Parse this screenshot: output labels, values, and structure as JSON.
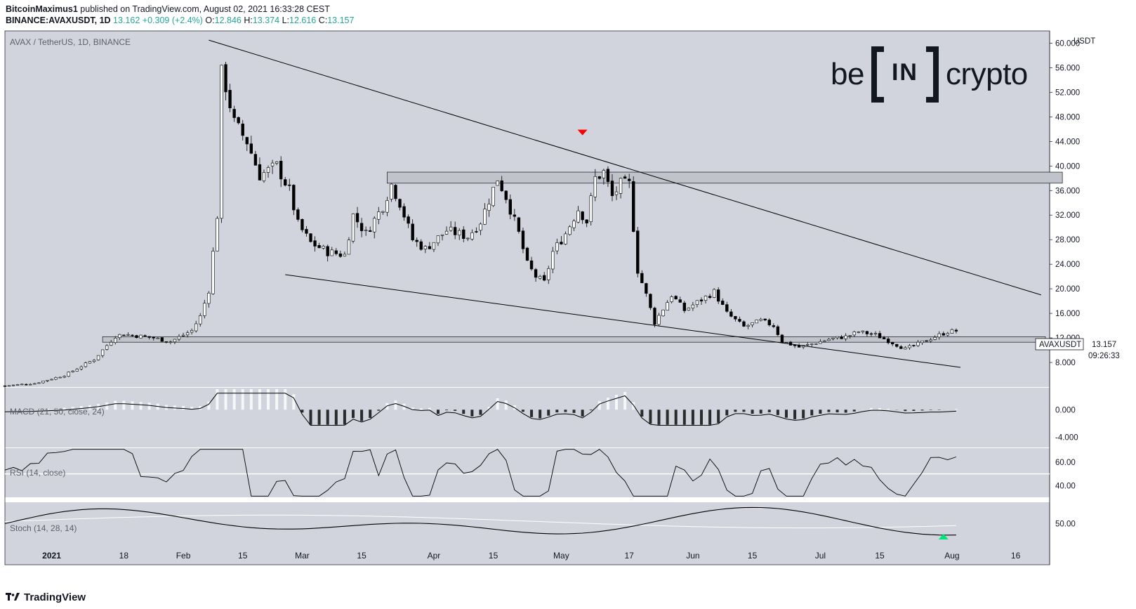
{
  "header": {
    "author": "BitcoinMaximus1",
    "published_text": "published on TradingView.com, August 02, 2021 16:33:28 CEST",
    "symbol": "BINANCE:AVAXUSDT, 1D",
    "last": "13.162",
    "change": "+0.309 (+2.4%)",
    "o_label": "O:",
    "o": "12.846",
    "h_label": "H:",
    "h": "13.374",
    "l_label": "L:",
    "l": "12.616",
    "c_label": "C:",
    "c": "13.157"
  },
  "price_pane": {
    "title": "AVAX / TetherUS, 1D, BINANCE",
    "unit_label": "USDT",
    "price_tag_symbol": "AVAXUSDT",
    "price_tag_value": "13.157",
    "countdown": "09:26:33"
  },
  "macd_pane": {
    "title": "MACD (21, 50, close, 24)"
  },
  "rsi_pane": {
    "title": "RSI (14, close)"
  },
  "stoch_pane": {
    "title": "Stoch (14, 28, 14)"
  },
  "logo": {
    "left": "be",
    "right": "crypto",
    "mark": "IN"
  },
  "footer": {
    "brand": "TradingView"
  },
  "colors": {
    "pane_bg": "#d1d4dc",
    "candle_up": "#ffffff",
    "candle_down": "#000000",
    "arrow_down": "#ff0000",
    "arrow_up": "#00e676",
    "zone_fill": "#c0c3c9",
    "header_value": "#26a69a"
  },
  "icons": {
    "footer_logo": "tradingview-logo-icon",
    "bearish_marker": "red-down-triangle-icon",
    "bullish_marker": "green-up-triangle-icon"
  },
  "chart_data": [
    {
      "type": "candlestick",
      "title": "AVAX / TetherUS, 1D, BINANCE",
      "ylabel": "USDT",
      "ylim": [
        4,
        62
      ],
      "y_ticks": [
        "60.000",
        "56.000",
        "52.000",
        "48.000",
        "44.000",
        "40.000",
        "36.000",
        "32.000",
        "28.000",
        "24.000",
        "20.000",
        "16.000",
        "12.000",
        "8.000"
      ],
      "x_ticks": [
        "2021",
        "18",
        "Feb",
        "15",
        "Mar",
        "15",
        "Apr",
        "15",
        "May",
        "17",
        "Jun",
        "15",
        "Jul",
        "15",
        "Aug",
        "16"
      ],
      "x_range": [
        "2020-12-21",
        "2021-08-24"
      ],
      "closes": [
        {
          "date": "2020-12-21",
          "close": 4.2
        },
        {
          "date": "2020-12-28",
          "close": 4.6
        },
        {
          "date": "2021-01-04",
          "close": 5.9
        },
        {
          "date": "2021-01-11",
          "close": 8.5
        },
        {
          "date": "2021-01-16",
          "close": 12.3
        },
        {
          "date": "2021-01-18",
          "close": 12.6
        },
        {
          "date": "2021-01-25",
          "close": 12.0
        },
        {
          "date": "2021-01-29",
          "close": 11.4
        },
        {
          "date": "2021-02-03",
          "close": 13.2
        },
        {
          "date": "2021-02-05",
          "close": 15.5
        },
        {
          "date": "2021-02-07",
          "close": 19.8
        },
        {
          "date": "2021-02-09",
          "close": 32
        },
        {
          "date": "2021-02-10",
          "close": 55
        },
        {
          "date": "2021-02-11",
          "close": 53
        },
        {
          "date": "2021-02-13",
          "close": 47
        },
        {
          "date": "2021-02-16",
          "close": 44
        },
        {
          "date": "2021-02-19",
          "close": 38.5
        },
        {
          "date": "2021-02-23",
          "close": 40
        },
        {
          "date": "2021-02-26",
          "close": 36
        },
        {
          "date": "2021-02-28",
          "close": 30.5
        },
        {
          "date": "2021-03-03",
          "close": 27.5
        },
        {
          "date": "2021-03-07",
          "close": 26
        },
        {
          "date": "2021-03-11",
          "close": 25.5
        },
        {
          "date": "2021-03-13",
          "close": 32
        },
        {
          "date": "2021-03-16",
          "close": 29
        },
        {
          "date": "2021-03-20",
          "close": 33.5
        },
        {
          "date": "2021-03-22",
          "close": 37
        },
        {
          "date": "2021-03-24",
          "close": 34
        },
        {
          "date": "2021-03-27",
          "close": 28
        },
        {
          "date": "2021-03-30",
          "close": 26.5
        },
        {
          "date": "2021-04-04",
          "close": 29.5
        },
        {
          "date": "2021-04-09",
          "close": 28.5
        },
        {
          "date": "2021-04-12",
          "close": 31
        },
        {
          "date": "2021-04-16",
          "close": 38
        },
        {
          "date": "2021-04-18",
          "close": 35
        },
        {
          "date": "2021-04-21",
          "close": 29
        },
        {
          "date": "2021-04-23",
          "close": 24
        },
        {
          "date": "2021-04-25",
          "close": 22
        },
        {
          "date": "2021-04-27",
          "close": 21
        },
        {
          "date": "2021-04-29",
          "close": 26
        },
        {
          "date": "2021-05-02",
          "close": 29
        },
        {
          "date": "2021-05-05",
          "close": 33
        },
        {
          "date": "2021-05-07",
          "close": 31
        },
        {
          "date": "2021-05-09",
          "close": 38
        },
        {
          "date": "2021-05-11",
          "close": 39
        },
        {
          "date": "2021-05-13",
          "close": 35
        },
        {
          "date": "2021-05-15",
          "close": 37
        },
        {
          "date": "2021-05-17",
          "close": 37
        },
        {
          "date": "2021-05-19",
          "close": 23
        },
        {
          "date": "2021-05-21",
          "close": 19
        },
        {
          "date": "2021-05-23",
          "close": 14.5
        },
        {
          "date": "2021-05-27",
          "close": 19
        },
        {
          "date": "2021-05-30",
          "close": 16.5
        },
        {
          "date": "2021-06-02",
          "close": 17.8
        },
        {
          "date": "2021-06-06",
          "close": 19.5
        },
        {
          "date": "2021-06-09",
          "close": 16
        },
        {
          "date": "2021-06-13",
          "close": 13.8
        },
        {
          "date": "2021-06-17",
          "close": 14.8
        },
        {
          "date": "2021-06-20",
          "close": 14
        },
        {
          "date": "2021-06-22",
          "close": 11.4
        },
        {
          "date": "2021-06-26",
          "close": 10.5
        },
        {
          "date": "2021-06-29",
          "close": 11
        },
        {
          "date": "2021-07-03",
          "close": 11.8
        },
        {
          "date": "2021-07-07",
          "close": 12.2
        },
        {
          "date": "2021-07-10",
          "close": 13
        },
        {
          "date": "2021-07-14",
          "close": 12.5
        },
        {
          "date": "2021-07-18",
          "close": 11.2
        },
        {
          "date": "2021-07-21",
          "close": 10.2
        },
        {
          "date": "2021-07-24",
          "close": 11
        },
        {
          "date": "2021-07-28",
          "close": 12.2
        },
        {
          "date": "2021-07-31",
          "close": 13
        },
        {
          "date": "2021-08-02",
          "close": 13.157
        }
      ],
      "annotations": [
        {
          "kind": "trendline",
          "label": "descending resistance",
          "from": [
            "2021-02-07",
            60.5
          ],
          "to": [
            "2021-08-22",
            19.0
          ]
        },
        {
          "kind": "trendline",
          "label": "descending support",
          "from": [
            "2021-02-25",
            22.3
          ],
          "to": [
            "2021-08-03",
            7.2
          ]
        },
        {
          "kind": "zone",
          "label": "resistance area",
          "x": [
            "2021-03-21",
            "2021-08-27"
          ],
          "y": [
            37.2,
            39.0
          ]
        },
        {
          "kind": "zone",
          "label": "support area",
          "x": [
            "2021-01-13",
            "2021-08-23"
          ],
          "y": [
            11.3,
            12.2
          ]
        },
        {
          "kind": "marker",
          "shape": "triangle-down",
          "color": "red",
          "at": [
            "2021-05-06",
            45.0
          ]
        },
        {
          "kind": "marker",
          "shape": "triangle-up",
          "color": "green",
          "pane": "stoch",
          "at": [
            "2021-07-30",
            20
          ]
        }
      ],
      "last_price": 13.157
    },
    {
      "type": "bar",
      "title": "MACD (21, 50, close, 24)",
      "y_ticks": [
        "0.000",
        "-4.000"
      ],
      "note": "histogram bars plus MACD signal line"
    },
    {
      "type": "line",
      "title": "RSI (14, close)",
      "y_ticks": [
        "60.00",
        "40.00"
      ]
    },
    {
      "type": "line",
      "title": "Stoch (14, 28, 14)",
      "y_ticks": [
        "50.00"
      ]
    }
  ]
}
